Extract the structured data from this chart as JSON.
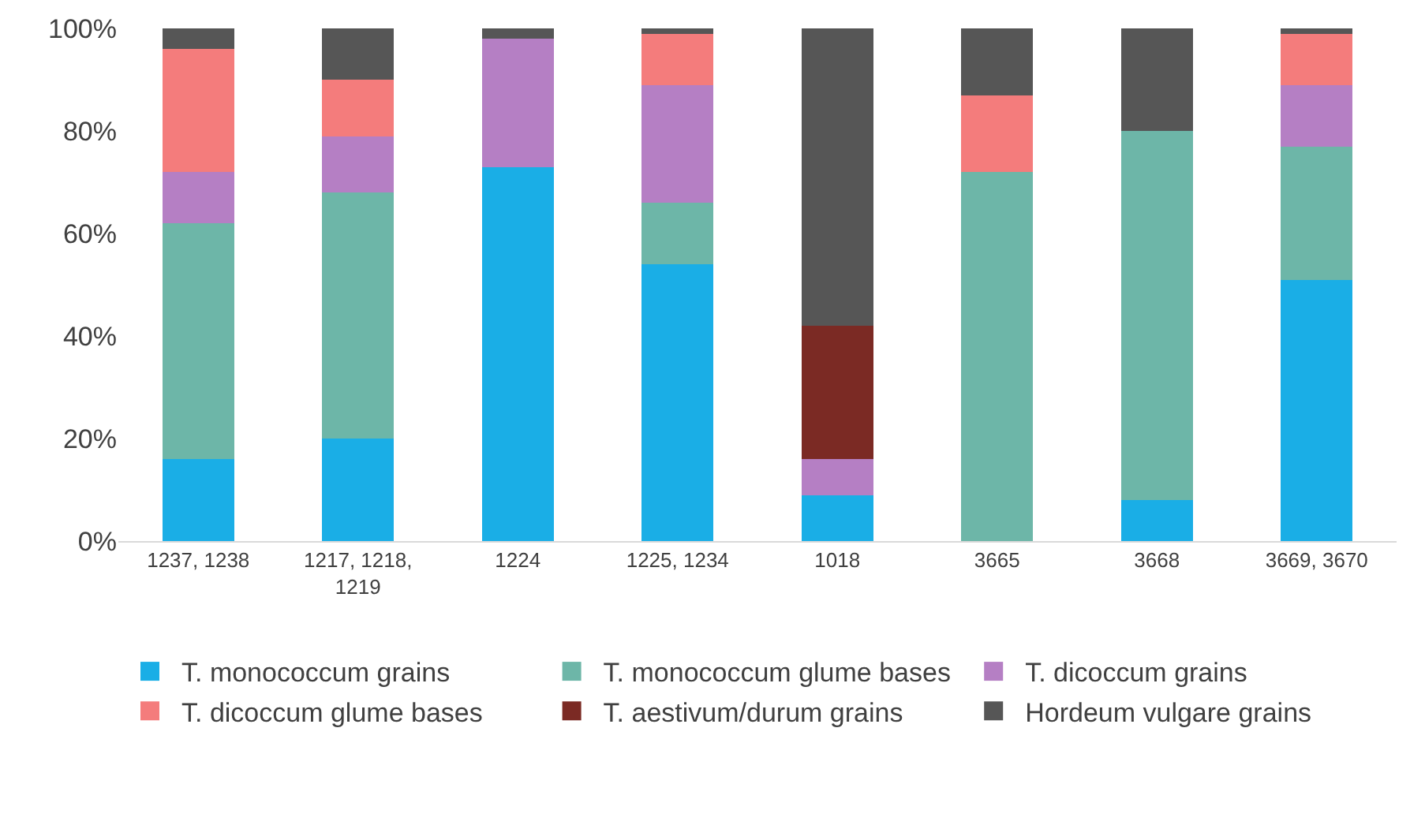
{
  "chart_data": {
    "type": "bar",
    "stacked": true,
    "categories": [
      "1237, 1238",
      "1217, 1218, 1219",
      "1224",
      "1225, 1234",
      "1018",
      "3665",
      "3668",
      "3669, 3670"
    ],
    "series": [
      {
        "name": "T. monococcum grains",
        "color": "#1aaee6",
        "values": [
          16,
          20,
          73,
          54,
          9,
          0,
          8,
          51
        ]
      },
      {
        "name": "T. monococcum glume bases",
        "color": "#6db6a8",
        "values": [
          46,
          48,
          0,
          12,
          0,
          72,
          72,
          26
        ]
      },
      {
        "name": "T. dicoccum grains",
        "color": "#b57fc4",
        "values": [
          10,
          11,
          25,
          23,
          7,
          0,
          0,
          12
        ]
      },
      {
        "name": "T. dicoccum glume bases",
        "color": "#f47c7c",
        "values": [
          24,
          11,
          0,
          10,
          0,
          15,
          0,
          10
        ]
      },
      {
        "name": "T. aestivum/durum grains",
        "color": "#7b2a24",
        "values": [
          0,
          0,
          0,
          0,
          26,
          0,
          0,
          0
        ]
      },
      {
        "name": "Hordeum vulgare grains",
        "color": "#565656",
        "values": [
          4,
          10,
          2,
          1,
          58,
          13,
          20,
          1
        ]
      }
    ],
    "ylim": [
      0,
      100
    ],
    "yticks": [
      {
        "value": 0,
        "label": "0%"
      },
      {
        "value": 20,
        "label": "20%"
      },
      {
        "value": 40,
        "label": "40%"
      },
      {
        "value": 60,
        "label": "60%"
      },
      {
        "value": 80,
        "label": "80%"
      },
      {
        "value": 100,
        "label": "100%"
      }
    ],
    "grid": false,
    "legend": "bottom"
  }
}
